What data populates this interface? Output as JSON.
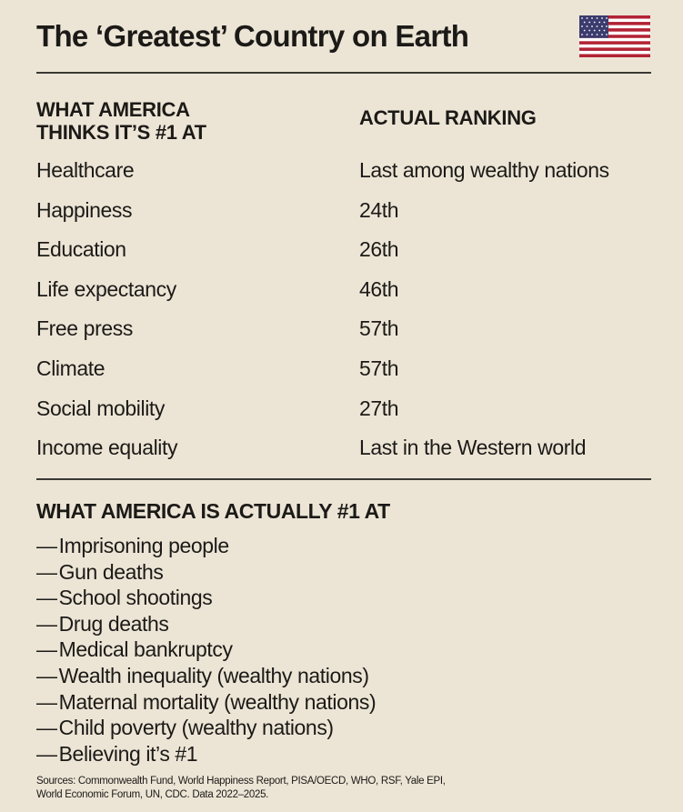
{
  "header": {
    "title": "The ‘Greatest’ Country on Earth",
    "flag_icon": "us-flag-icon"
  },
  "table": {
    "left_header_line1": "WHAT AMERICA",
    "left_header_line2": "THINKS IT’S #1 AT",
    "right_header": "ACTUAL RANKING",
    "rows": [
      {
        "category": "Healthcare",
        "ranking": "Last among wealthy nations"
      },
      {
        "category": "Happiness",
        "ranking": "24th"
      },
      {
        "category": "Education",
        "ranking": "26th"
      },
      {
        "category": "Life expectancy",
        "ranking": "46th"
      },
      {
        "category": "Free press",
        "ranking": "57th"
      },
      {
        "category": "Climate",
        "ranking": "57th"
      },
      {
        "category": "Social mobility",
        "ranking": "27th"
      },
      {
        "category": "Income equality",
        "ranking": "Last in the Western world"
      }
    ]
  },
  "actual": {
    "heading": "WHAT AMERICA IS ACTUALLY #1 AT",
    "dash": "—",
    "items": [
      "Imprisoning people",
      "Gun deaths",
      "School shootings",
      "Drug deaths",
      "Medical bankruptcy",
      "Wealth inequality (wealthy nations)",
      "Maternal mortality (wealthy nations)",
      "Child poverty (wealthy nations)",
      "Believing it’s #1"
    ]
  },
  "footer": {
    "sources_line1": "Sources: Commonwealth Fund, World Happiness Report, PISA/OECD, WHO, RSF, Yale EPI,",
    "sources_line2": "World Economic Forum, UN, CDC. Data 2022–2025."
  },
  "colors": {
    "background": "#ece5d6",
    "text": "#1c1a17",
    "flag_red": "#b22234",
    "flag_blue": "#3c3b6e",
    "flag_white": "#ffffff"
  }
}
